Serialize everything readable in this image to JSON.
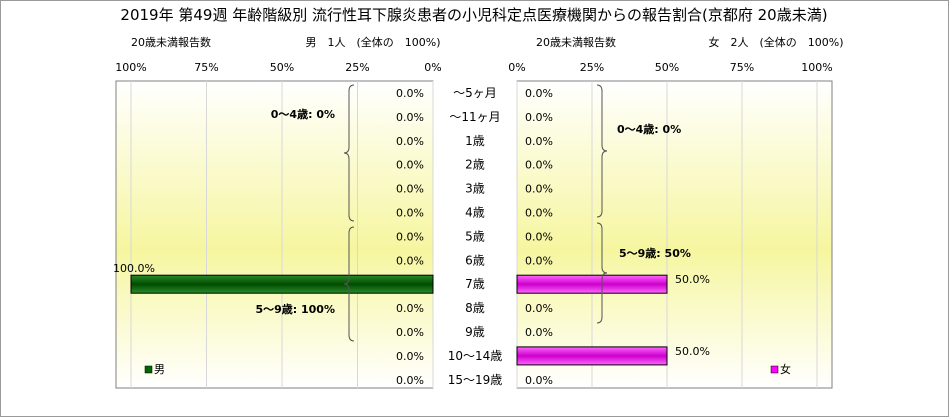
{
  "chart_data": {
    "type": "bar",
    "title": "2019年 第49週 年齢階級別 流行性耳下腺炎患者の小児科定点医療機関からの報告割合(京都府 20歳未満)",
    "categories": [
      "～5ヶ月",
      "～11ヶ月",
      "1歳",
      "2歳",
      "3歳",
      "4歳",
      "5歳",
      "6歳",
      "7歳",
      "8歳",
      "9歳",
      "10～14歳",
      "15～19歳"
    ],
    "left_panel": {
      "header_label": "20歳未満報告数",
      "header_count": "男　1人　(全体の　100%)",
      "ticks": [
        "100%",
        "75%",
        "50%",
        "25%",
        "0%"
      ],
      "value_labels": [
        "0.0%",
        "0.0%",
        "0.0%",
        "0.0%",
        "0.0%",
        "0.0%",
        "0.0%",
        "0.0%",
        "100.0%",
        "0.0%",
        "0.0%",
        "0.0%",
        "0.0%"
      ],
      "groups": [
        "0～4歳: 0%",
        "5～9歳: 100%"
      ],
      "legend": "男",
      "color": "#006600",
      "series": [
        {
          "name": "男",
          "values": [
            0,
            0,
            0,
            0,
            0,
            0,
            0,
            0,
            100,
            0,
            0,
            0,
            0
          ]
        }
      ]
    },
    "right_panel": {
      "header_label": "20歳未満報告数",
      "header_count": "女　2人　(全体の　100%)",
      "ticks": [
        "0%",
        "25%",
        "50%",
        "75%",
        "100%"
      ],
      "value_labels": [
        "0.0%",
        "0.0%",
        "0.0%",
        "0.0%",
        "0.0%",
        "0.0%",
        "0.0%",
        "0.0%",
        "50.0%",
        "0.0%",
        "0.0%",
        "50.0%",
        "0.0%"
      ],
      "groups": [
        "0～4歳: 0%",
        "5～9歳: 50%"
      ],
      "legend": "女",
      "color": "#ff00ff",
      "series": [
        {
          "name": "女",
          "values": [
            0,
            0,
            0,
            0,
            0,
            0,
            0,
            0,
            50,
            0,
            0,
            50,
            0
          ]
        }
      ]
    },
    "xlim": [
      0,
      100
    ],
    "grid": true,
    "legend_position": "bottom-inside"
  }
}
